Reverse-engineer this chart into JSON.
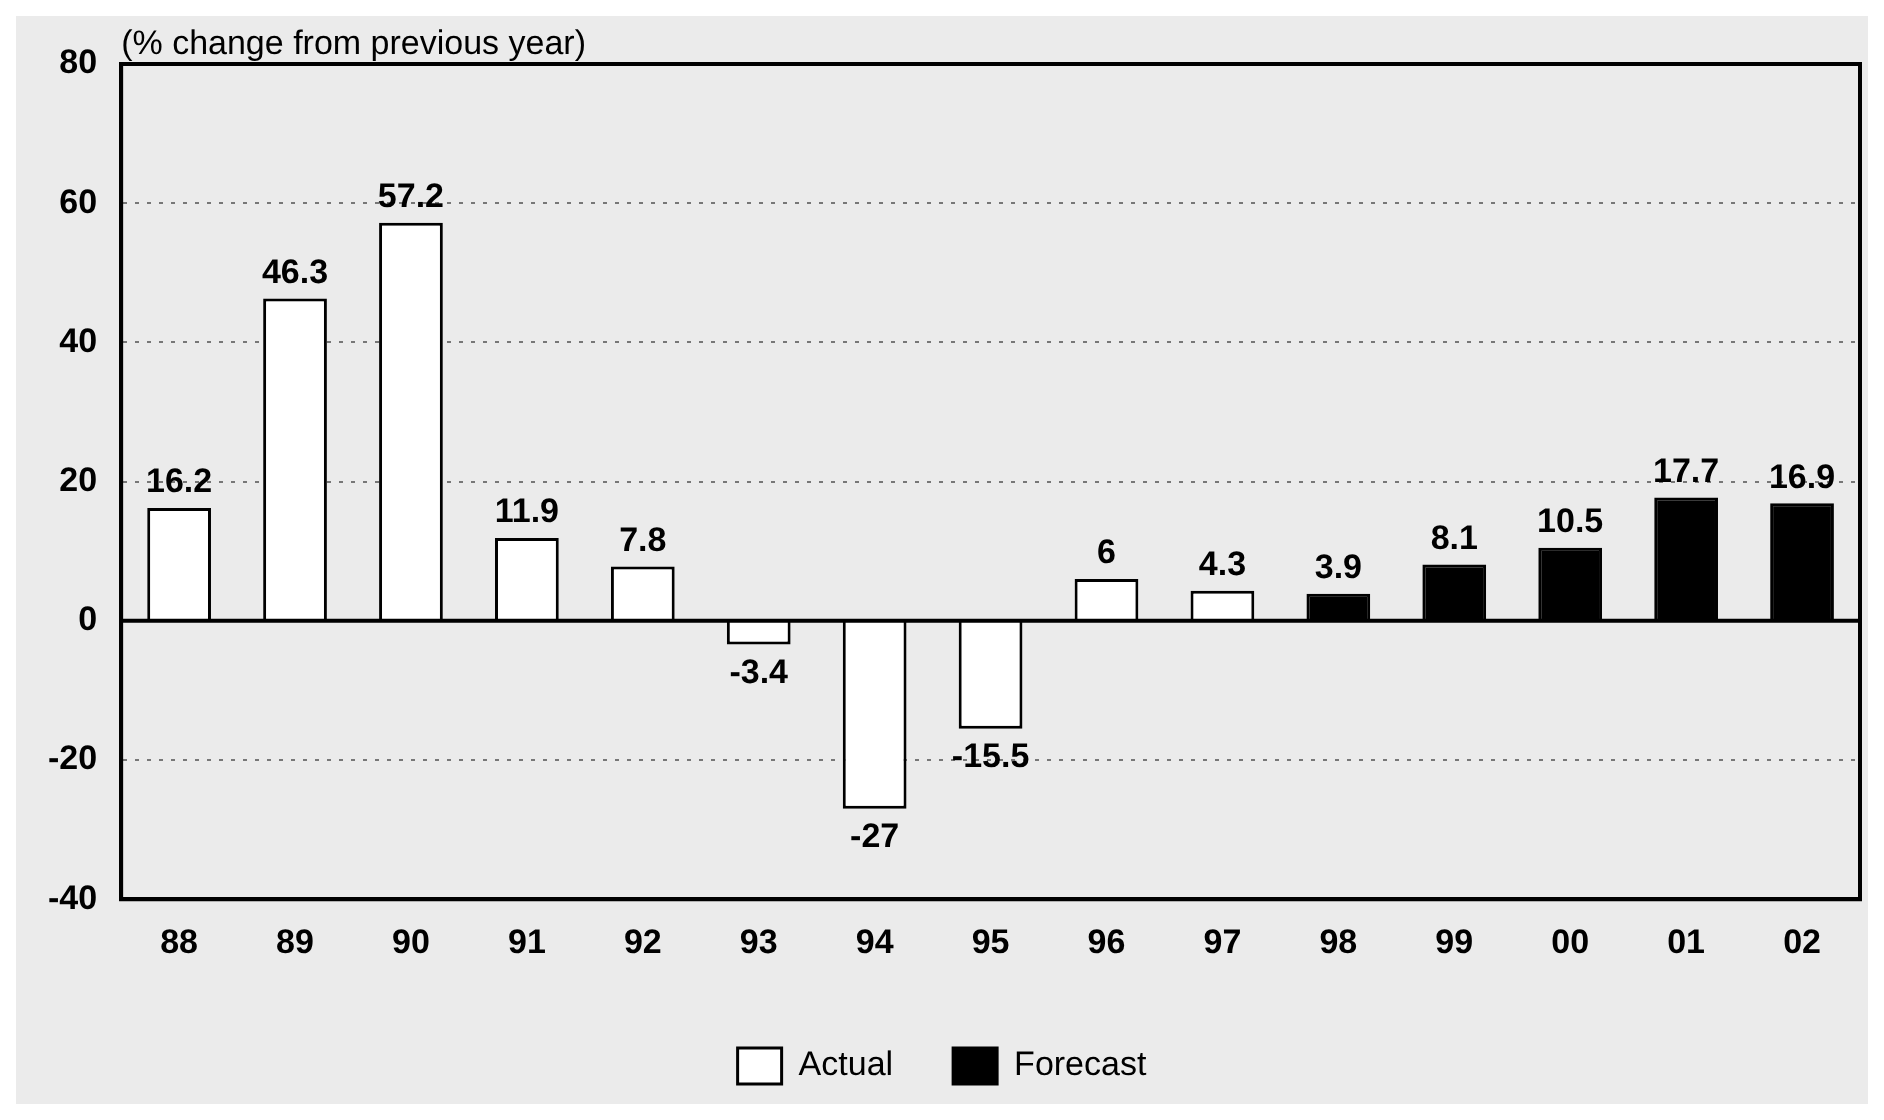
{
  "chart_data": {
    "type": "bar",
    "ylabel": "(% change from previous year)",
    "categories": [
      "88",
      "89",
      "90",
      "91",
      "92",
      "93",
      "94",
      "95",
      "96",
      "97",
      "98",
      "99",
      "00",
      "01",
      "02"
    ],
    "series": [
      {
        "name": "Actual",
        "color": "#ffffff",
        "values": [
          16.2,
          46.3,
          57.2,
          11.9,
          7.8,
          -3.4,
          -27,
          -15.5,
          6,
          4.3,
          null,
          null,
          null,
          null,
          null
        ]
      },
      {
        "name": "Forecast",
        "color": "#000000",
        "values": [
          null,
          null,
          null,
          null,
          null,
          null,
          null,
          null,
          null,
          null,
          3.9,
          8.1,
          10.5,
          17.7,
          16.9
        ]
      }
    ],
    "stacked": true,
    "ylim": [
      -40,
      80
    ],
    "yticks": [
      -40,
      -20,
      0,
      20,
      40,
      60,
      80
    ],
    "grid": "y",
    "legend": "bottom",
    "data_labels": true
  }
}
